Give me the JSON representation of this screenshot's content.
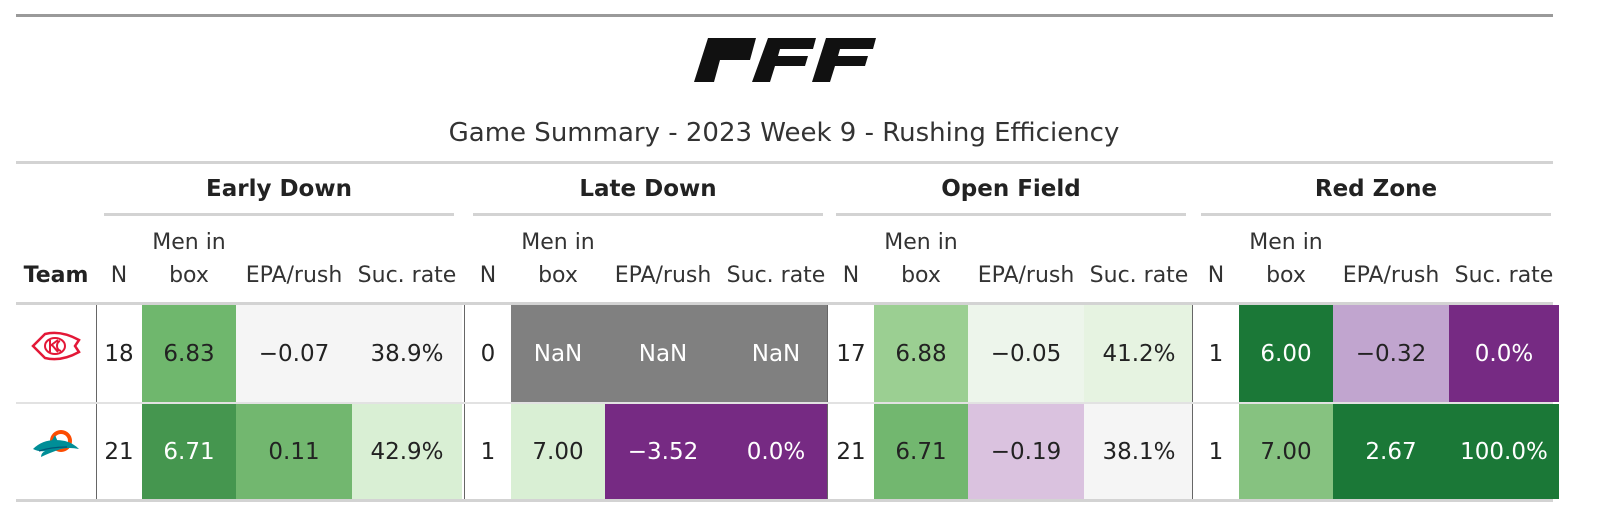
{
  "header": {
    "brand": "PFF",
    "title": "Game Summary - 2023 Week 9 - Rushing Efficiency"
  },
  "columns": {
    "team": "Team",
    "n": "N",
    "men_in_box_1": "Men in",
    "men_in_box_2": "box",
    "epa_rush": "EPA/rush",
    "suc_rate": "Suc. rate"
  },
  "groups": [
    {
      "label": "Early Down"
    },
    {
      "label": "Late Down"
    },
    {
      "label": "Open Field"
    },
    {
      "label": "Red Zone"
    }
  ],
  "rows": [
    {
      "team_icon": "chiefs-logo",
      "cells": [
        {
          "value": "18",
          "bg": "#ffffff",
          "fg": "#222222"
        },
        {
          "value": "6.83",
          "bg": "#6fb76d",
          "fg": "#222222"
        },
        {
          "value": "−0.07",
          "bg": "#f5f5f5",
          "fg": "#222222"
        },
        {
          "value": "38.9%",
          "bg": "#f5f5f5",
          "fg": "#222222"
        },
        {
          "value": "0",
          "bg": "#ffffff",
          "fg": "#222222"
        },
        {
          "value": "NaN",
          "bg": "#808080",
          "fg": "#ffffff"
        },
        {
          "value": "NaN",
          "bg": "#808080",
          "fg": "#ffffff"
        },
        {
          "value": "NaN",
          "bg": "#808080",
          "fg": "#ffffff"
        },
        {
          "value": "17",
          "bg": "#ffffff",
          "fg": "#222222"
        },
        {
          "value": "6.88",
          "bg": "#9bcf92",
          "fg": "#222222"
        },
        {
          "value": "−0.05",
          "bg": "#edf5eb",
          "fg": "#222222"
        },
        {
          "value": "41.2%",
          "bg": "#e6f3e1",
          "fg": "#222222"
        },
        {
          "value": "1",
          "bg": "#ffffff",
          "fg": "#222222"
        },
        {
          "value": "6.00",
          "bg": "#1b7837",
          "fg": "#ffffff"
        },
        {
          "value": "−0.32",
          "bg": "#c1a5cf",
          "fg": "#222222"
        },
        {
          "value": "0.0%",
          "bg": "#762a83",
          "fg": "#ffffff"
        }
      ]
    },
    {
      "team_icon": "dolphins-logo",
      "cells": [
        {
          "value": "21",
          "bg": "#ffffff",
          "fg": "#222222"
        },
        {
          "value": "6.71",
          "bg": "#45964f",
          "fg": "#ffffff"
        },
        {
          "value": "0.11",
          "bg": "#72b76f",
          "fg": "#222222"
        },
        {
          "value": "42.9%",
          "bg": "#d9efd4",
          "fg": "#222222"
        },
        {
          "value": "1",
          "bg": "#ffffff",
          "fg": "#222222"
        },
        {
          "value": "7.00",
          "bg": "#d9efd4",
          "fg": "#222222"
        },
        {
          "value": "−3.52",
          "bg": "#762a83",
          "fg": "#ffffff"
        },
        {
          "value": "0.0%",
          "bg": "#762a83",
          "fg": "#ffffff"
        },
        {
          "value": "21",
          "bg": "#ffffff",
          "fg": "#222222"
        },
        {
          "value": "6.71",
          "bg": "#72b76f",
          "fg": "#222222"
        },
        {
          "value": "−0.19",
          "bg": "#dac2df",
          "fg": "#222222"
        },
        {
          "value": "38.1%",
          "bg": "#f5f5f5",
          "fg": "#222222"
        },
        {
          "value": "1",
          "bg": "#ffffff",
          "fg": "#222222"
        },
        {
          "value": "7.00",
          "bg": "#86c280",
          "fg": "#222222"
        },
        {
          "value": "2.67",
          "bg": "#1b7837",
          "fg": "#ffffff"
        },
        {
          "value": "100.0%",
          "bg": "#1b7837",
          "fg": "#ffffff"
        }
      ]
    }
  ]
}
